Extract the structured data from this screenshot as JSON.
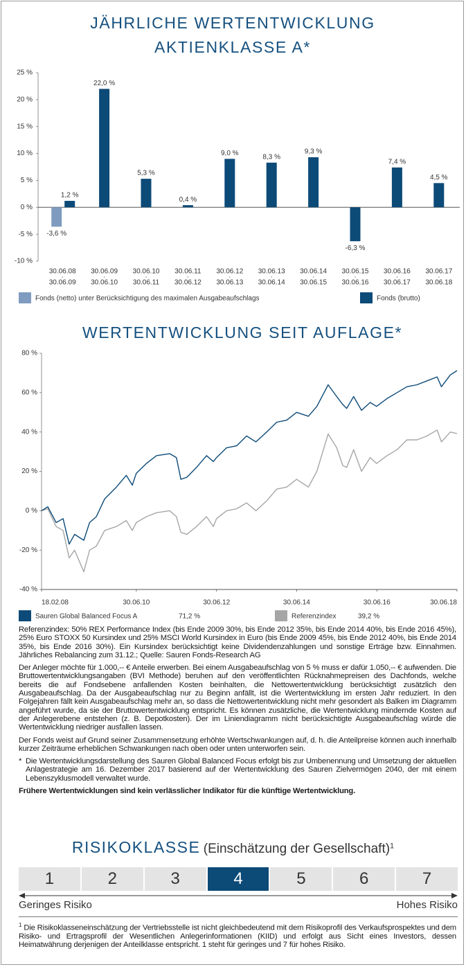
{
  "chart_data": [
    {
      "type": "bar",
      "title": [
        "JÄHRLICHE WERTENTWICKLUNG",
        "AKTIENKLASSE A*"
      ],
      "categories": [
        [
          "30.06.08",
          "30.06.09"
        ],
        [
          "30.06.09",
          "30.06.10"
        ],
        [
          "30.06.10",
          "30.06.11"
        ],
        [
          "30.06.11",
          "30.06.12"
        ],
        [
          "30.06.12",
          "30.06.13"
        ],
        [
          "30.06.13",
          "30.06.14"
        ],
        [
          "30.06.14",
          "30.06.15"
        ],
        [
          "30.06.15",
          "30.06.16"
        ],
        [
          "30.06.16",
          "30.06.17"
        ],
        [
          "30.06.17",
          "30.06.18"
        ]
      ],
      "series": [
        {
          "name": "Fonds (netto) unter Berücksichtigung des maximalen Ausgabeaufschlags",
          "color": "#7f9cc0",
          "values": [
            -3.6,
            null,
            null,
            null,
            null,
            null,
            null,
            null,
            null,
            null
          ],
          "value_labels": [
            "-3,6 %",
            null,
            null,
            null,
            null,
            null,
            null,
            null,
            null,
            null
          ]
        },
        {
          "name": "Fonds (brutto)",
          "color": "#0c4a78",
          "values": [
            1.2,
            22.0,
            5.3,
            0.4,
            9.0,
            8.3,
            9.3,
            -6.3,
            7.4,
            4.5
          ],
          "value_labels": [
            "1,2 %",
            "22,0 %",
            "5,3 %",
            "0,4 %",
            "9,0 %",
            "8,3 %",
            "9,3 %",
            "-6,3 %",
            "7,4 %",
            "4,5 %"
          ]
        }
      ],
      "ylim": [
        -10,
        25
      ],
      "yticks": [
        {
          "value": -10,
          "label": "-10 %"
        },
        {
          "value": -5,
          "label": "-5 %"
        },
        {
          "value": 0,
          "label": "0 %"
        },
        {
          "value": 5,
          "label": "5 %"
        },
        {
          "value": 10,
          "label": "10 %"
        },
        {
          "value": 15,
          "label": "15 %"
        },
        {
          "value": 20,
          "label": "20 %"
        },
        {
          "value": 25,
          "label": "25 %"
        }
      ]
    },
    {
      "type": "line",
      "title": "WERTENTWICKLUNG SEIT AUFLAGE*",
      "x": [
        "2008-02-18",
        "2008-04-15",
        "2008-06-30",
        "2008-09-01",
        "2008-10-27",
        "2008-12-15",
        "2009-03-09",
        "2009-05-01",
        "2009-07-01",
        "2009-09-15",
        "2009-12-31",
        "2010-03-31",
        "2010-05-25",
        "2010-06-30",
        "2010-09-30",
        "2010-12-31",
        "2011-04-30",
        "2011-07-01",
        "2011-08-10",
        "2011-10-04",
        "2011-12-31",
        "2012-03-31",
        "2012-06-01",
        "2012-06-30",
        "2012-09-30",
        "2012-12-31",
        "2013-03-31",
        "2013-06-24",
        "2013-09-30",
        "2013-12-31",
        "2014-03-31",
        "2014-06-30",
        "2014-10-15",
        "2014-12-31",
        "2015-04-13",
        "2015-06-30",
        "2015-08-24",
        "2015-09-29",
        "2015-12-01",
        "2016-02-11",
        "2016-04-30",
        "2016-06-27",
        "2016-09-30",
        "2016-12-31",
        "2017-03-31",
        "2017-06-30",
        "2017-09-30",
        "2017-12-31",
        "2018-02-08",
        "2018-04-30",
        "2018-06-30"
      ],
      "series": [
        {
          "name": "Sauren Global Balanced Focus A",
          "value_label": "71,2 %",
          "color": "#0c4a78",
          "values": [
            0,
            2,
            -6,
            -4,
            -17,
            -12,
            -15,
            -6,
            -3,
            6,
            12,
            18,
            13,
            19,
            24,
            28,
            29,
            27,
            16,
            17,
            22,
            28,
            25,
            27,
            32,
            33,
            38,
            35,
            40,
            45,
            46,
            50,
            48,
            53,
            64,
            58,
            54,
            52,
            58,
            51,
            55,
            53,
            57,
            60,
            63,
            64,
            66,
            68,
            63,
            69,
            71.2
          ]
        },
        {
          "name": "Referenzindex",
          "value_label": "39,2 %",
          "color": "#a6a6a6",
          "values": [
            0,
            1,
            -8,
            -10,
            -24,
            -20,
            -31,
            -20,
            -18,
            -10,
            -8,
            -5,
            -10,
            -6,
            -3,
            -1,
            0,
            -3,
            -11,
            -12,
            -8,
            -3,
            -8,
            -4,
            0,
            1,
            4,
            0,
            5,
            11,
            12,
            16,
            12,
            20,
            39,
            32,
            23,
            22,
            31,
            20,
            27,
            24,
            28,
            31,
            36,
            36,
            38,
            41,
            35,
            40,
            39.2
          ]
        }
      ],
      "xlim": [
        "2008-02-18",
        "2018-06-30"
      ],
      "xticks": [
        {
          "value": "2008-02-18",
          "label": "18.02.08"
        },
        {
          "value": "2010-06-30",
          "label": "30.06.10"
        },
        {
          "value": "2012-06-30",
          "label": "30.06.12"
        },
        {
          "value": "2014-06-30",
          "label": "30.06.14"
        },
        {
          "value": "2016-06-30",
          "label": "30.06.16"
        },
        {
          "value": "2018-06-30",
          "label": "30.06.18"
        }
      ],
      "ylim": [
        -40,
        80
      ],
      "yticks": [
        {
          "value": -40,
          "label": "-40 %"
        },
        {
          "value": -20,
          "label": "-20 %"
        },
        {
          "value": 0,
          "label": "0 %"
        },
        {
          "value": 20,
          "label": "20 %"
        },
        {
          "value": 40,
          "label": "40 %"
        },
        {
          "value": 60,
          "label": "60 %"
        },
        {
          "value": 80,
          "label": "80 %"
        }
      ]
    }
  ],
  "notes": [
    "Referenzindex: 50% REX Performance Index (bis Ende 2009 30%, bis Ende 2012 35%, bis Ende 2014 40%, bis Ende 2016 45%), 25% Euro STOXX 50 Kursindex und 25% MSCI World Kursindex in Euro (bis Ende 2009 45%, bis Ende 2012 40%, bis Ende 2014 35%, bis Ende 2016 30%). Ein Kursindex berücksichtigt keine Dividendenzahlungen und sonstige Erträge bzw. Einnahmen. Jährliches Rebalancing zum 31.12.; Quelle: Sauren Fonds-Research AG",
    "Der Anleger möchte für 1.000,-- € Anteile erwerben. Bei einem Ausgabeaufschlag von 5 % muss er dafür 1.050,-- € aufwenden. Die Bruttowertentwicklungsangaben (BVI Methode) beruhen auf den veröffentlichten Rücknahmepreisen des Dachfonds, welche bereits die auf Fondsebene anfallenden Kosten beinhalten, die Nettowertentwicklung berücksichtigt zusätzlich den Ausgabeaufschlag. Da der Ausgabeaufschlag nur zu Beginn anfällt, ist die Wertentwicklung im ersten Jahr reduziert. In den Folgejahren fällt kein Ausgabeaufschlag mehr an, so dass die Nettowertentwicklung nicht mehr gesondert als Balken im Diagramm angeführt wurde, da sie der Bruttowertentwicklung entspricht. Es können zusätzliche, die Wertentwicklung mindernde Kosten auf der Anlegerebene entstehen (z. B. Depotkosten). Der im Liniendiagramm nicht berücksichtigte Ausgabeaufschlag würde die Wertentwicklung niedriger ausfallen lassen.",
    "Der Fonds weist auf Grund seiner Zusammensetzung erhöhte Wertschwankungen auf, d. h. die Anteilpreise können auch innerhalb kurzer Zeiträume erheblichen Schwankungen nach oben oder unten unterworfen sein."
  ],
  "star_note": {
    "mark": "*",
    "text": "Die Wertentwicklungsdarstellung des Sauren Global Balanced Focus erfolgt bis zur Umbenennung und Umsetzung der aktuellen Anlagestrategie am 16. Dezember 2017 basierend auf der Wertentwicklung des Sauren Zielvermögen 2040, der mit einem Lebenszyklusmodell verwaltet wurde."
  },
  "disclaimer": "Frühere Wertentwicklungen sind kein verlässlicher Indikator für die künftige Wertentwicklung.",
  "risk": {
    "title": "RISIKOKLASSE",
    "subtitle": "(Einschätzung der Gesellschaft)",
    "footnote_mark": "1",
    "classes": [
      1,
      2,
      3,
      4,
      5,
      6,
      7
    ],
    "selected": 4,
    "low": "Geringes Risiko",
    "high": "Hohes Risiko",
    "footnote": "Die Risikoklasseneinschätzung der Vertriebsstelle ist nicht gleichbedeutend mit dem Risikoprofil des Verkaufsprospektes und dem Risiko- und Ertragsprofil der Wesentlichen Anlegerinformationen (KIID) und erfolgt aus Sicht eines Investors, dessen Heimatwährung derjenigen der Anteilklasse entspricht. 1 steht für geringes und 7 für hohes Risiko."
  }
}
